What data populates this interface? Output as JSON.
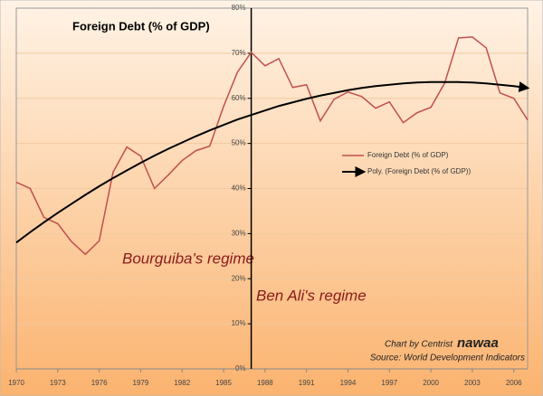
{
  "chart_data": {
    "type": "line",
    "title": "Foreign Debt (% of GDP)",
    "x": [
      1970,
      1971,
      1972,
      1973,
      1974,
      1975,
      1976,
      1977,
      1978,
      1979,
      1980,
      1981,
      1982,
      1983,
      1984,
      1985,
      1986,
      1987,
      1988,
      1989,
      1990,
      1991,
      1992,
      1993,
      1994,
      1995,
      1996,
      1997,
      1998,
      1999,
      2000,
      2001,
      2002,
      2003,
      2004,
      2005,
      2006,
      2007
    ],
    "series": [
      {
        "name": "Foreign Debt (% of GDP)",
        "color": "#c0504d",
        "values": [
          41.4,
          40,
          33.6,
          32.2,
          28.2,
          25.4,
          28.4,
          43.6,
          49.2,
          47.2,
          40,
          43,
          46.2,
          48.4,
          49.4,
          58.2,
          65.8,
          70.2,
          67.2,
          68.8,
          62.4,
          63,
          55,
          59.8,
          61.4,
          60.4,
          57.8,
          59.2,
          54.6,
          56.8,
          58,
          63.4,
          73.4,
          73.6,
          71.2,
          61.2,
          60,
          55.2
        ]
      },
      {
        "name": "Poly. (Foreign Debt (% of GDP))",
        "color": "#000000",
        "arrow": true,
        "values": [
          28.0,
          30.3,
          32.5,
          34.6,
          36.6,
          38.6,
          40.5,
          42.3,
          44.0,
          45.7,
          47.3,
          48.8,
          50.2,
          51.6,
          52.9,
          54.1,
          55.3,
          56.3,
          57.3,
          58.3,
          59.1,
          59.9,
          60.6,
          61.2,
          61.8,
          62.3,
          62.7,
          63.0,
          63.3,
          63.5,
          63.6,
          63.6,
          63.6,
          63.5,
          63.3,
          63.0,
          62.7,
          62.3
        ]
      }
    ],
    "xlim": [
      1970,
      2007
    ],
    "xticks": [
      1970,
      1973,
      1976,
      1979,
      1982,
      1985,
      1988,
      1991,
      1994,
      1997,
      2000,
      2003,
      2006
    ],
    "ylim": [
      0,
      80
    ],
    "yticks": [
      {
        "value": 0,
        "label": "0%"
      },
      {
        "value": 10,
        "label": "10%"
      },
      {
        "value": 20,
        "label": "20%"
      },
      {
        "value": 30,
        "label": "30%"
      },
      {
        "value": 40,
        "label": "40%"
      },
      {
        "value": 50,
        "label": "50%"
      },
      {
        "value": 60,
        "label": "60%"
      },
      {
        "value": 70,
        "label": "70%"
      },
      {
        "value": 80,
        "label": "80%"
      }
    ],
    "yaxis_at": 1987,
    "grid": true,
    "legend": "center-right",
    "annotations": [
      "Bourguiba's regime",
      "Ben Ali's regime",
      "Chart by Centrist",
      "nawaa",
      "Source: World Development Indicators"
    ]
  }
}
